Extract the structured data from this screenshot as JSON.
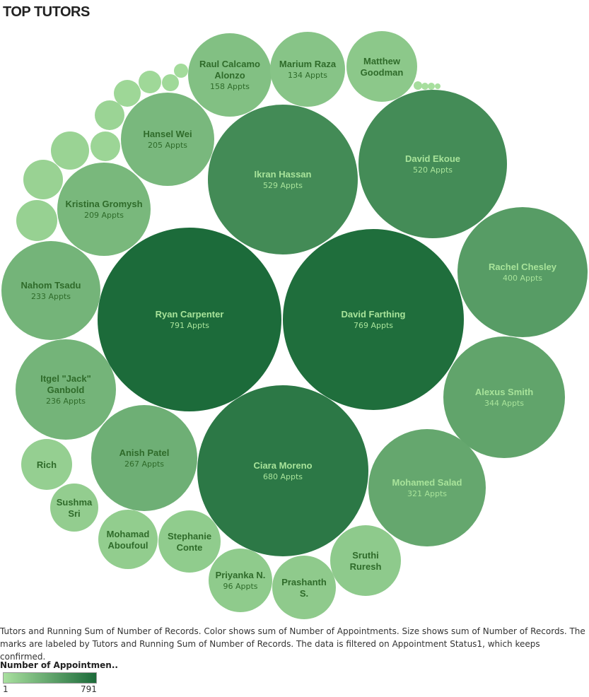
{
  "title": "TOP TUTORS",
  "caption": "Tutors and Running Sum of Number of Records.  Color shows sum of Number of Appointments.  Size shows sum of Number of Records.  The marks are labeled by Tutors and Running Sum of Number of Records. The data is filtered on Appointment Status1, which keeps confirmed.",
  "legend": {
    "title": "Number of Appointmen..",
    "min_label": "1",
    "max_label": "791",
    "color_low": "#a9e09f",
    "color_high": "#1c6b3a"
  },
  "chart_data": {
    "type": "packed-bubble",
    "color_min": 1,
    "color_max": 791,
    "bubbles": [
      {
        "name": "Ryan Carpenter",
        "value_label": "791 Appts",
        "value": 791
      },
      {
        "name": "David Farthing",
        "value_label": "769 Appts",
        "value": 769
      },
      {
        "name": "Ciara Moreno",
        "value_label": "680 Appts",
        "value": 680
      },
      {
        "name": "Ikran Hassan",
        "value_label": "529 Appts",
        "value": 529
      },
      {
        "name": "David Ekoue",
        "value_label": "520 Appts",
        "value": 520
      },
      {
        "name": "Rachel Chesley",
        "value_label": "400 Appts",
        "value": 400
      },
      {
        "name": "Alexus Smith",
        "value_label": "344 Appts",
        "value": 344
      },
      {
        "name": "Mohamed Salad",
        "value_label": "321 Appts",
        "value": 321
      },
      {
        "name": "Anish Patel",
        "value_label": "267 Appts",
        "value": 267
      },
      {
        "name": "Itgel \"Jack\" Ganbold",
        "value_label": "236 Appts",
        "value": 236
      },
      {
        "name": "Nahom Tsadu",
        "value_label": "233 Appts",
        "value": 233
      },
      {
        "name": "Kristina Gromysh",
        "value_label": "209 Appts",
        "value": 209
      },
      {
        "name": "Hansel Wei",
        "value_label": "205 Appts",
        "value": 205
      },
      {
        "name": "Raul Calcamo Alonzo",
        "value_label": "158 Appts",
        "value": 158
      },
      {
        "name": "Marium Raza",
        "value_label": "134 Appts",
        "value": 134
      },
      {
        "name": "Matthew Goodman",
        "value_label": "",
        "value": 110
      },
      {
        "name": "Sruthi Ruresh",
        "value_label": "",
        "value": 100
      },
      {
        "name": "Prashanth S.",
        "value_label": "",
        "value": 98
      },
      {
        "name": "Priyanka N.",
        "value_label": "96 Appts",
        "value": 96
      },
      {
        "name": "Stephanie Conte",
        "value_label": "",
        "value": 90
      },
      {
        "name": "Mohamad Aboufoul",
        "value_label": "",
        "value": 85
      },
      {
        "name": "Sushma Sri",
        "value_label": "",
        "value": 80
      },
      {
        "name": "Rich",
        "value_label": "",
        "value": 70
      },
      {
        "name": "",
        "value_label": "",
        "value": 60
      },
      {
        "name": "",
        "value_label": "",
        "value": 55
      },
      {
        "name": "",
        "value_label": "",
        "value": 50
      },
      {
        "name": "",
        "value_label": "",
        "value": 45
      },
      {
        "name": "",
        "value_label": "",
        "value": 40
      },
      {
        "name": "",
        "value_label": "",
        "value": 35
      },
      {
        "name": "",
        "value_label": "",
        "value": 30
      },
      {
        "name": "",
        "value_label": "",
        "value": 25
      },
      {
        "name": "",
        "value_label": "",
        "value": 15
      },
      {
        "name": "",
        "value_label": "",
        "value": 10
      },
      {
        "name": "",
        "value_label": "",
        "value": 5
      },
      {
        "name": "",
        "value_label": "",
        "value": 4
      },
      {
        "name": "",
        "value_label": "",
        "value": 3
      }
    ]
  }
}
